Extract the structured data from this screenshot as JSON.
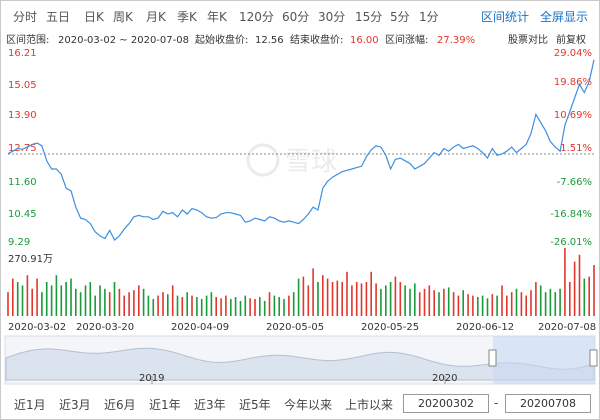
{
  "tabs": [
    {
      "label": "分时"
    },
    {
      "label": "五日"
    },
    {
      "label": "日K"
    },
    {
      "label": "周K"
    },
    {
      "label": "月K"
    },
    {
      "label": "季K"
    },
    {
      "label": "年K"
    },
    {
      "label": "120分"
    },
    {
      "label": "60分"
    },
    {
      "label": "30分"
    },
    {
      "label": "15分"
    },
    {
      "label": "5分"
    },
    {
      "label": "1分"
    }
  ],
  "links": {
    "range_stats": "区间统计",
    "fullscreen": "全屏显示"
  },
  "info": {
    "range_label": "区间范围:",
    "range_value": "2020-03-02 ~ 2020-07-08",
    "start_label": "起始收盘价:",
    "start_value": "12.56",
    "end_label": "结束收盘价:",
    "end_value": "16.00",
    "change_label": "区间涨幅:",
    "change_value": "27.39%",
    "compare": "股票对比",
    "adjust": "前复权"
  },
  "chart_data": {
    "type": "line",
    "title": "",
    "price_axis": {
      "ticks": [
        "16.21",
        "15.05",
        "13.90",
        "12.75",
        "11.60",
        "10.45",
        "9.29"
      ],
      "ylim": [
        9.29,
        16.21
      ]
    },
    "pct_axis": {
      "ticks": [
        "29.04%",
        "19.86%",
        "10.69%",
        "1.51%",
        "-7.66%",
        "-16.84%",
        "-26.01%"
      ]
    },
    "reference_price": 12.56,
    "x_ticks": [
      "2020-03-02",
      "2020-03-20",
      "2020-04-09",
      "2020-05-05",
      "2020-05-25",
      "2020-06-12",
      "2020-07-08"
    ],
    "series": [
      {
        "values": [
          12.56,
          12.65,
          12.75,
          12.72,
          12.8,
          12.9,
          12.95,
          12.85,
          12.3,
          12.0,
          12.0,
          11.8,
          11.3,
          11.2,
          10.6,
          10.2,
          10.15,
          10.0,
          9.7,
          9.55,
          9.45,
          9.75,
          9.4,
          9.55,
          9.8,
          10.0,
          10.25,
          10.3,
          10.25,
          10.25,
          10.15,
          10.2,
          10.45,
          10.35,
          10.4,
          10.25,
          10.5,
          10.35,
          10.55,
          10.5,
          10.4,
          10.25,
          10.2,
          10.22,
          10.35,
          10.4,
          10.4,
          10.35,
          10.3,
          10.05,
          10.1,
          10.2,
          10.15,
          10.1,
          10.25,
          10.2,
          10.1,
          10.05,
          10.1,
          10.05,
          10.0,
          10.15,
          10.35,
          10.6,
          10.5,
          11.3,
          11.55,
          11.7,
          11.8,
          11.9,
          11.95,
          12.0,
          12.05,
          12.1,
          12.45,
          12.7,
          12.85,
          12.8,
          12.5,
          12.0,
          12.35,
          12.4,
          12.3,
          12.2,
          12.0,
          12.1,
          12.2,
          12.4,
          12.6,
          12.5,
          12.75,
          12.65,
          12.8,
          12.9,
          12.75,
          12.8,
          12.85,
          12.75,
          12.6,
          12.4,
          12.75,
          12.5,
          12.55,
          12.65,
          12.8,
          12.6,
          12.75,
          12.9,
          13.3,
          14.0,
          13.7,
          13.4,
          13.0,
          12.8,
          12.65,
          13.6,
          14.1,
          14.6,
          15.1,
          14.8,
          15.2,
          16.0
        ]
      }
    ],
    "volume": {
      "max_label": "270.91万",
      "values": [
        0.35,
        0.55,
        0.5,
        0.45,
        0.6,
        0.4,
        0.55,
        0.35,
        0.5,
        0.45,
        0.6,
        0.45,
        0.5,
        0.55,
        0.4,
        0.35,
        0.45,
        0.5,
        0.3,
        0.45,
        0.4,
        0.35,
        0.5,
        0.4,
        0.3,
        0.35,
        0.38,
        0.45,
        0.4,
        0.3,
        0.25,
        0.3,
        0.35,
        0.32,
        0.45,
        0.3,
        0.28,
        0.35,
        0.3,
        0.28,
        0.25,
        0.3,
        0.35,
        0.28,
        0.26,
        0.3,
        0.25,
        0.28,
        0.22,
        0.3,
        0.26,
        0.25,
        0.28,
        0.22,
        0.35,
        0.3,
        0.28,
        0.25,
        0.3,
        0.35,
        0.55,
        0.58,
        0.45,
        0.7,
        0.5,
        0.6,
        0.55,
        0.5,
        0.52,
        0.5,
        0.65,
        0.45,
        0.5,
        0.48,
        0.5,
        0.65,
        0.48,
        0.4,
        0.45,
        0.5,
        0.58,
        0.5,
        0.45,
        0.4,
        0.48,
        0.35,
        0.4,
        0.45,
        0.38,
        0.35,
        0.4,
        0.42,
        0.35,
        0.3,
        0.38,
        0.32,
        0.3,
        0.28,
        0.3,
        0.26,
        0.32,
        0.3,
        0.45,
        0.3,
        0.35,
        0.4,
        0.35,
        0.3,
        0.38,
        0.5,
        0.45,
        0.35,
        0.4,
        0.35,
        0.4,
        1.0,
        0.5,
        0.8,
        0.9,
        0.55,
        0.58,
        0.75
      ],
      "up": [
        1,
        1,
        0,
        0,
        1,
        1,
        1,
        0,
        0,
        0,
        0,
        0,
        0,
        0,
        0,
        0,
        0,
        0,
        0,
        0,
        0,
        1,
        0,
        1,
        1,
        1,
        1,
        1,
        0,
        0,
        0,
        1,
        1,
        0,
        1,
        0,
        1,
        0,
        1,
        0,
        0,
        0,
        0,
        1,
        1,
        1,
        0,
        0,
        0,
        0,
        1,
        1,
        0,
        0,
        1,
        0,
        0,
        0,
        1,
        0,
        0,
        1,
        1,
        1,
        0,
        1,
        1,
        1,
        1,
        1,
        1,
        1,
        1,
        1,
        1,
        1,
        1,
        0,
        0,
        0,
        1,
        1,
        0,
        0,
        0,
        1,
        1,
        1,
        1,
        0,
        1,
        0,
        1,
        1,
        0,
        1,
        1,
        0,
        0,
        0,
        1,
        0,
        1,
        1,
        1,
        0,
        1,
        1,
        1,
        1,
        0,
        0,
        0,
        0,
        0,
        1,
        1,
        1,
        1,
        0,
        1,
        1
      ]
    }
  },
  "navigator": {
    "years": [
      "2019",
      "2020"
    ]
  },
  "range_buttons": [
    "近1月",
    "近3月",
    "近6月",
    "近1年",
    "近3年",
    "近5年",
    "今年以来",
    "上市以来"
  ],
  "date_inputs": {
    "start": "20200302",
    "end": "20200708",
    "separator": "-"
  },
  "colors": {
    "line": "#3d8fe0",
    "up": "#e0372c",
    "down": "#1a9a3a",
    "accent": "#1a73c8"
  }
}
